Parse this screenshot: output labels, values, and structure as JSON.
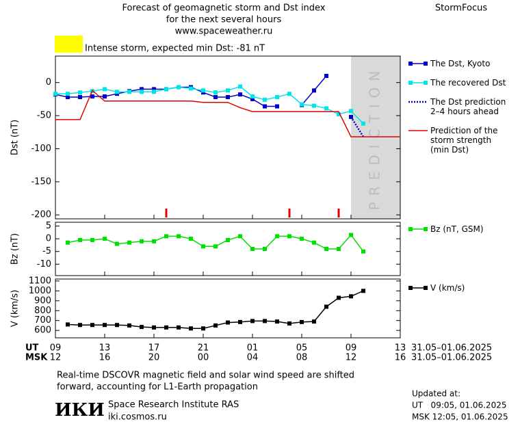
{
  "header": {
    "title_lines": [
      "Forecast of geomagnetic storm and Dst index",
      "for the next several hours",
      "www.spaceweather.ru"
    ],
    "brand": "StormFocus",
    "alert_color": "#ffff00",
    "alert_text": "Intense storm, expected min Dst: -81 nT"
  },
  "chart_data": [
    {
      "type": "line",
      "ylabel": "Dst (nT)",
      "xlim": [
        0,
        28
      ],
      "ylim": [
        -206,
        40
      ],
      "yticks": [
        0,
        -50,
        -100,
        -150,
        -200
      ],
      "prediction_region": [
        24,
        28
      ],
      "prediction_label": "PREDICTION",
      "event_marks_x": [
        9,
        19,
        23
      ],
      "event_color": "#e00000",
      "series": [
        {
          "name": "The Dst, Kyoto",
          "color": "#0000cc",
          "marker": "square",
          "style": "solid",
          "x": [
            0,
            1,
            2,
            3,
            4,
            5,
            6,
            7,
            8,
            9,
            10,
            11,
            12,
            13,
            14,
            15,
            16,
            17,
            18,
            19,
            20,
            21,
            22,
            23,
            24
          ],
          "values": [
            -18,
            -22,
            -22,
            -21,
            -21,
            -17,
            -13,
            -10,
            -10,
            -10,
            -7,
            -7,
            -15,
            -22,
            -22,
            -18,
            -25,
            -36,
            -36,
            null,
            -34,
            -12,
            10,
            null,
            -52
          ]
        },
        {
          "name": "The recovered Dst",
          "color": "#00e5e5",
          "marker": "square",
          "style": "solid",
          "x": [
            0,
            1,
            2,
            3,
            4,
            5,
            6,
            7,
            8,
            9,
            10,
            11,
            12,
            13,
            14,
            15,
            16,
            17,
            18,
            19,
            20,
            21,
            22,
            23,
            24,
            25
          ],
          "values": [
            -17,
            -17,
            -15,
            -13,
            -10,
            -14,
            -14,
            -14,
            -14,
            -10,
            -7,
            -9,
            -12,
            -15,
            -12,
            -6,
            -21,
            -26,
            -22,
            -17,
            -33,
            -35,
            -39,
            -48,
            -43,
            -62
          ]
        },
        {
          "name": "The Dst prediction\n2–4 hours ahead",
          "color": "#0000cc",
          "marker": "none",
          "style": "dotted",
          "x": [
            24,
            25
          ],
          "values": [
            -52,
            -82
          ]
        },
        {
          "name": "Prediction of the\nstorm strength\n(min Dst)",
          "color": "#e00000",
          "marker": "none",
          "style": "solid",
          "x": [
            0,
            2,
            3,
            4,
            11,
            12,
            14,
            15,
            16,
            23,
            24,
            28
          ],
          "values": [
            -56,
            -56,
            -12,
            -28,
            -28,
            -30,
            -30,
            -38,
            -44,
            -44,
            -82,
            -82
          ]
        }
      ]
    },
    {
      "type": "line",
      "ylabel": "Bz (nT)",
      "xlim": [
        0,
        28
      ],
      "ylim": [
        -14.5,
        6.5
      ],
      "yticks": [
        5,
        0,
        -5,
        -10
      ],
      "series": [
        {
          "name": "Bz (nT, GSM)",
          "color": "#00e000",
          "marker": "square",
          "style": "solid",
          "x": [
            1,
            2,
            3,
            4,
            5,
            6,
            7,
            8,
            9,
            10,
            11,
            12,
            13,
            14,
            15,
            16,
            17,
            18,
            19,
            20,
            21,
            22,
            23,
            24,
            25
          ],
          "values": [
            -1.5,
            -0.5,
            -0.5,
            0,
            -2,
            -1.5,
            -1,
            -1,
            1,
            1,
            0,
            -3,
            -3,
            -0.5,
            1,
            -4,
            -4,
            1,
            1,
            0,
            -1.5,
            -4,
            -4,
            1.5,
            -5
          ]
        }
      ]
    },
    {
      "type": "line",
      "ylabel": "V (km/s)",
      "xlim": [
        0,
        28
      ],
      "ylim": [
        525,
        1120
      ],
      "yticks": [
        600,
        700,
        800,
        900,
        1000,
        1100
      ],
      "xticks": [
        {
          "value": 0,
          "label": "09"
        },
        {
          "value": 4,
          "label": "13"
        },
        {
          "value": 8,
          "label": "17"
        },
        {
          "value": 12,
          "label": "21"
        },
        {
          "value": 16,
          "label": "01"
        },
        {
          "value": 20,
          "label": "05"
        },
        {
          "value": 24,
          "label": "09"
        },
        {
          "value": 28,
          "label": "13"
        }
      ],
      "msk_tick_labels": [
        "12",
        "16",
        "20",
        "00",
        "04",
        "08",
        "12",
        "16"
      ],
      "ut_label": "UT",
      "msk_label": "MSK",
      "ut_range": "31.05–01.06.2025",
      "msk_range": "31.05–01.06.2025",
      "series": [
        {
          "name": "V (km/s)",
          "color": "#000000",
          "marker": "square",
          "style": "solid",
          "x": [
            1,
            2,
            3,
            4,
            5,
            6,
            7,
            8,
            9,
            10,
            11,
            12,
            13,
            14,
            15,
            16,
            17,
            18,
            19,
            20,
            21,
            22,
            23,
            24,
            25
          ],
          "values": [
            660,
            655,
            655,
            655,
            655,
            650,
            635,
            630,
            630,
            630,
            620,
            620,
            650,
            680,
            685,
            695,
            695,
            690,
            670,
            685,
            690,
            840,
            930,
            945,
            1000
          ]
        }
      ]
    }
  ],
  "footer": {
    "note_lines": [
      "Real-time DSCOVR magnetic field and solar wind speed are shifted",
      "forward, accounting for L1-Earth propagation"
    ],
    "logo": "ИКИ",
    "institute": "Space Research Institute RAS",
    "website": "iki.cosmos.ru",
    "updated_label": "Updated at:",
    "updated_ut": "UT   09:05, 01.06.2025",
    "updated_msk": "MSK 12:05, 01.06.2025"
  }
}
